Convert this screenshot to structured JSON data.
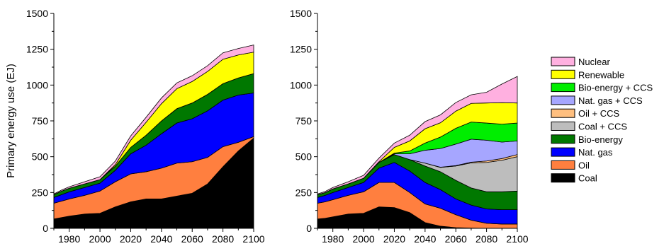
{
  "chart_data": [
    {
      "type": "area",
      "stacked": true,
      "ylabel": "Primary energy use (EJ)",
      "xlabel": "",
      "xlim": [
        1970,
        2100
      ],
      "ylim": [
        0,
        1500
      ],
      "xticks": [
        "1980",
        "2000",
        "2020",
        "2040",
        "2060",
        "2080",
        "2100"
      ],
      "yticks": [
        "0",
        "250",
        "500",
        "750",
        "1000",
        "1250",
        "1500"
      ],
      "x": [
        1970,
        1975,
        1980,
        1990,
        2000,
        2010,
        2020,
        2030,
        2040,
        2050,
        2060,
        2070,
        2080,
        2090,
        2100
      ],
      "series": [
        {
          "name": "Coal",
          "color": "#000000",
          "values": [
            65,
            75,
            85,
            100,
            105,
            150,
            185,
            205,
            205,
            225,
            245,
            310,
            430,
            540,
            630
          ]
        },
        {
          "name": "Oil",
          "color": "#ff7f3f",
          "values": [
            110,
            115,
            120,
            130,
            155,
            175,
            195,
            190,
            215,
            230,
            220,
            185,
            140,
            60,
            10
          ]
        },
        {
          "name": "Nat. gas",
          "color": "#0000ff",
          "values": [
            40,
            45,
            50,
            55,
            55,
            80,
            140,
            185,
            240,
            280,
            300,
            325,
            325,
            330,
            305
          ]
        },
        {
          "name": "Bio-energy",
          "color": "#007800",
          "values": [
            20,
            25,
            25,
            25,
            25,
            30,
            45,
            70,
            90,
            100,
            110,
            115,
            115,
            120,
            135
          ]
        },
        {
          "name": "Coal + CCS",
          "color": "#bdbdbd",
          "values": [
            0,
            0,
            0,
            0,
            0,
            0,
            0,
            0,
            0,
            0,
            0,
            0,
            0,
            0,
            0
          ]
        },
        {
          "name": "Oil + CCS",
          "color": "#ffbf7f",
          "values": [
            0,
            0,
            0,
            0,
            0,
            0,
            0,
            0,
            0,
            0,
            0,
            0,
            0,
            0,
            0
          ]
        },
        {
          "name": "Nat. gas + CCS",
          "color": "#a6a6ff",
          "values": [
            0,
            0,
            0,
            0,
            0,
            0,
            0,
            0,
            0,
            0,
            0,
            0,
            0,
            0,
            0
          ]
        },
        {
          "name": "Bio-energy + CCS",
          "color": "#00ee00",
          "values": [
            0,
            0,
            0,
            0,
            0,
            0,
            0,
            0,
            0,
            0,
            0,
            0,
            0,
            0,
            0
          ]
        },
        {
          "name": "Renewable",
          "color": "#ffff00",
          "values": [
            0,
            0,
            0,
            0,
            0,
            10,
            50,
            90,
            120,
            140,
            150,
            160,
            170,
            160,
            150
          ]
        },
        {
          "name": "Nuclear",
          "color": "#ffb0e0",
          "values": [
            5,
            7,
            10,
            15,
            20,
            25,
            30,
            35,
            40,
            40,
            40,
            40,
            45,
            45,
            50
          ]
        }
      ]
    },
    {
      "type": "area",
      "stacked": true,
      "ylabel": "",
      "xlabel": "",
      "xlim": [
        1970,
        2100
      ],
      "ylim": [
        0,
        1500
      ],
      "xticks": [
        "1980",
        "2000",
        "2020",
        "2040",
        "2060",
        "2080",
        "2100"
      ],
      "yticks": [
        "0",
        "250",
        "500",
        "750",
        "1000",
        "1250",
        "1500"
      ],
      "x": [
        1970,
        1975,
        1980,
        1990,
        2000,
        2010,
        2020,
        2030,
        2040,
        2050,
        2060,
        2070,
        2080,
        2090,
        2100
      ],
      "series": [
        {
          "name": "Coal",
          "color": "#000000",
          "values": [
            65,
            70,
            80,
            100,
            105,
            150,
            145,
            110,
            40,
            15,
            5,
            2,
            0,
            0,
            0
          ]
        },
        {
          "name": "Oil",
          "color": "#ff7f3f",
          "values": [
            110,
            115,
            120,
            130,
            150,
            170,
            175,
            140,
            130,
            125,
            90,
            55,
            35,
            30,
            30
          ]
        },
        {
          "name": "Nat. gas",
          "color": "#0000ff",
          "values": [
            40,
            45,
            50,
            55,
            65,
            100,
            140,
            150,
            150,
            130,
            110,
            105,
            100,
            100,
            100
          ]
        },
        {
          "name": "Bio-energy",
          "color": "#007800",
          "values": [
            20,
            20,
            25,
            25,
            30,
            40,
            55,
            80,
            115,
            125,
            130,
            120,
            120,
            125,
            130
          ]
        },
        {
          "name": "Coal + CCS",
          "color": "#bdbdbd",
          "values": [
            0,
            0,
            0,
            0,
            0,
            0,
            0,
            0,
            20,
            30,
            100,
            175,
            205,
            220,
            240
          ]
        },
        {
          "name": "Oil + CCS",
          "color": "#ffbf7f",
          "values": [
            0,
            0,
            0,
            0,
            0,
            0,
            0,
            0,
            0,
            2,
            3,
            5,
            10,
            12,
            15
          ]
        },
        {
          "name": "Nat. gas + CCS",
          "color": "#a6a6ff",
          "values": [
            0,
            0,
            0,
            0,
            0,
            0,
            5,
            40,
            90,
            130,
            150,
            160,
            145,
            115,
            95
          ]
        },
        {
          "name": "Bio-energy + CCS",
          "color": "#00ee00",
          "values": [
            0,
            0,
            0,
            0,
            0,
            0,
            5,
            20,
            50,
            80,
            110,
            120,
            120,
            125,
            125
          ]
        },
        {
          "name": "Renewable",
          "color": "#ffff00",
          "values": [
            0,
            0,
            0,
            0,
            0,
            5,
            40,
            70,
            100,
            100,
            120,
            130,
            140,
            150,
            140
          ]
        },
        {
          "name": "Nuclear",
          "color": "#ffb0e0",
          "values": [
            5,
            7,
            10,
            15,
            20,
            25,
            30,
            40,
            50,
            55,
            60,
            60,
            75,
            130,
            185
          ]
        }
      ]
    }
  ],
  "legend": {
    "placement": "right",
    "order": [
      "Nuclear",
      "Renewable",
      "Bio-energy + CCS",
      "Nat. gas + CCS",
      "Oil + CCS",
      "Coal + CCS",
      "Bio-energy",
      "Nat. gas",
      "Oil",
      "Coal"
    ]
  }
}
